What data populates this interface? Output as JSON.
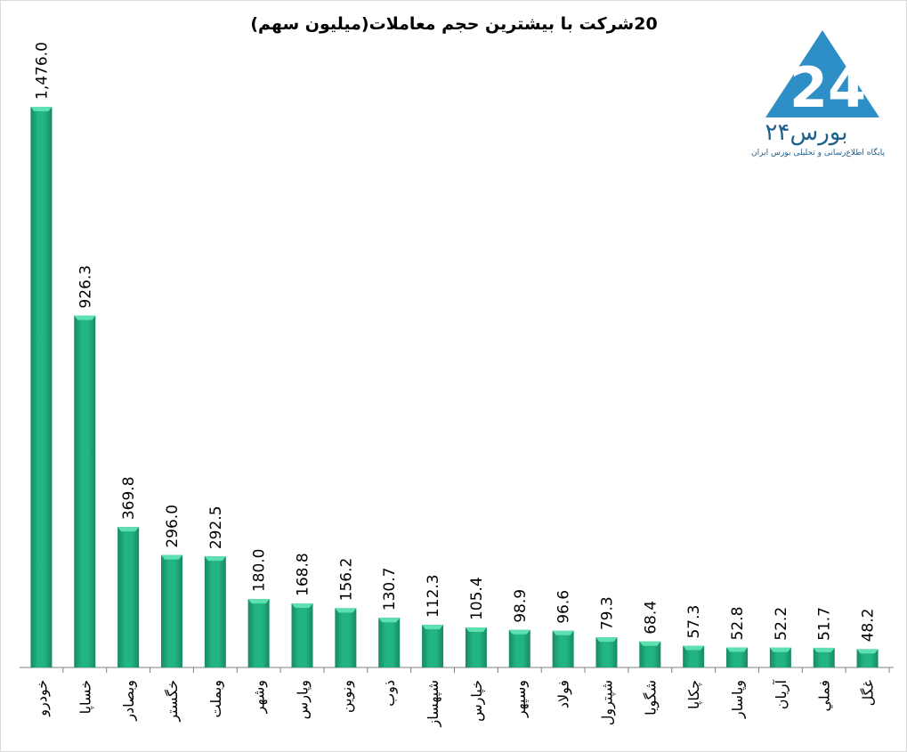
{
  "chart_data": {
    "type": "bar",
    "title": "20شرکت با بیشترین حجم معاملات(میلیون سهم)",
    "categories": [
      "خودرو",
      "خساپا",
      "وبصادر",
      "خگستر",
      "وبملت",
      "وشهر",
      "وپارس",
      "ونوین",
      "ذوب",
      "شپهساز",
      "خپارس",
      "وسپهر",
      "فولاد",
      "شپترول",
      "شگویا",
      "چکاپا",
      "وپاسار",
      "آریان",
      "فملي",
      "غگل"
    ],
    "values": [
      1476.0,
      926.3,
      369.8,
      296.0,
      292.5,
      180.0,
      168.8,
      156.2,
      130.7,
      112.3,
      105.4,
      98.9,
      96.6,
      79.3,
      68.4,
      57.3,
      52.8,
      52.2,
      51.7,
      48.2
    ],
    "value_labels": [
      "1,476.0",
      "926.3",
      "369.8",
      "296.0",
      "292.5",
      "180.0",
      "168.8",
      "156.2",
      "130.7",
      "112.3",
      "105.4",
      "98.9",
      "96.6",
      "79.3",
      "68.4",
      "57.3",
      "52.8",
      "52.2",
      "51.7",
      "48.2"
    ],
    "ylim": [
      0,
      1476.0
    ],
    "grid": false,
    "bar_color": "#1fb07f"
  },
  "logo": {
    "name": "بورس۲۴",
    "tagline": "پایگاه اطلاع‌رسانی و تحلیلی بورس ایران",
    "color": "#2e8fc6"
  }
}
